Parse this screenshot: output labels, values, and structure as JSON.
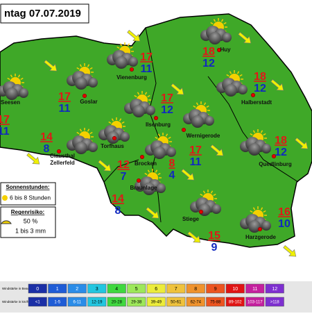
{
  "header": {
    "title": "ntag 07.07.2019"
  },
  "cities": [
    {
      "lines": [
        "Vienenburg"
      ],
      "high": 17,
      "low": 11
    },
    {
      "lines": [
        "Goslar"
      ],
      "high": 17,
      "low": 11
    },
    {
      "lines": [
        "Seesen"
      ],
      "high": 17,
      "low": 11
    },
    {
      "lines": [
        "Huy"
      ],
      "high": 18,
      "low": 12
    },
    {
      "lines": [
        "Halberstadt"
      ],
      "high": 18,
      "low": 12
    },
    {
      "lines": [
        "Ilsenburg"
      ],
      "high": 17,
      "low": 12
    },
    {
      "lines": [
        "Wernigerode"
      ],
      "high": 17,
      "low": 11
    },
    {
      "lines": [
        "Clausthal",
        "Zellerfeld"
      ],
      "high": 14,
      "low": 8
    },
    {
      "lines": [
        "Torfhaus"
      ],
      "high": 12,
      "low": 7
    },
    {
      "lines": [
        "Brocken"
      ],
      "high": 8,
      "low": 4
    },
    {
      "lines": [
        "Quedlinburg"
      ],
      "high": 18,
      "low": 12
    },
    {
      "lines": [
        "Braunlage"
      ],
      "high": 14,
      "low": 8
    },
    {
      "lines": [
        "Stiege"
      ],
      "high": 15,
      "low": 9
    },
    {
      "lines": [
        "Harzgerode"
      ],
      "high": 16,
      "low": 10
    }
  ],
  "legend": {
    "sun_title": "Sonnenstunden:",
    "sun_value": "6 bis 8 Stunden",
    "rain_title": "Regenrisiko:",
    "rain_chance": "50 %",
    "rain_amount": "1 bis 3 mm"
  },
  "wind_scale": {
    "beaufort_label": "Windstärke in Beaufort",
    "kmh_label": "Windstärke in km/h",
    "colors": [
      "#1b2fa6",
      "#1f5cd6",
      "#2a8ce8",
      "#22c6e0",
      "#3fd83f",
      "#9de85a",
      "#ecec3a",
      "#efc23c",
      "#ef922c",
      "#ec5420",
      "#e01414",
      "#c4209e",
      "#7e2fd0"
    ],
    "beaufort": [
      0,
      1,
      2,
      3,
      4,
      5,
      6,
      7,
      8,
      9,
      10,
      11,
      12
    ],
    "kmh": [
      "<1",
      "1-5",
      "6-11",
      "12-19",
      "20-28",
      "29-38",
      "39-49",
      "50-61",
      "62-74",
      "75-88",
      "89-102",
      "103-117",
      ">118"
    ]
  }
}
